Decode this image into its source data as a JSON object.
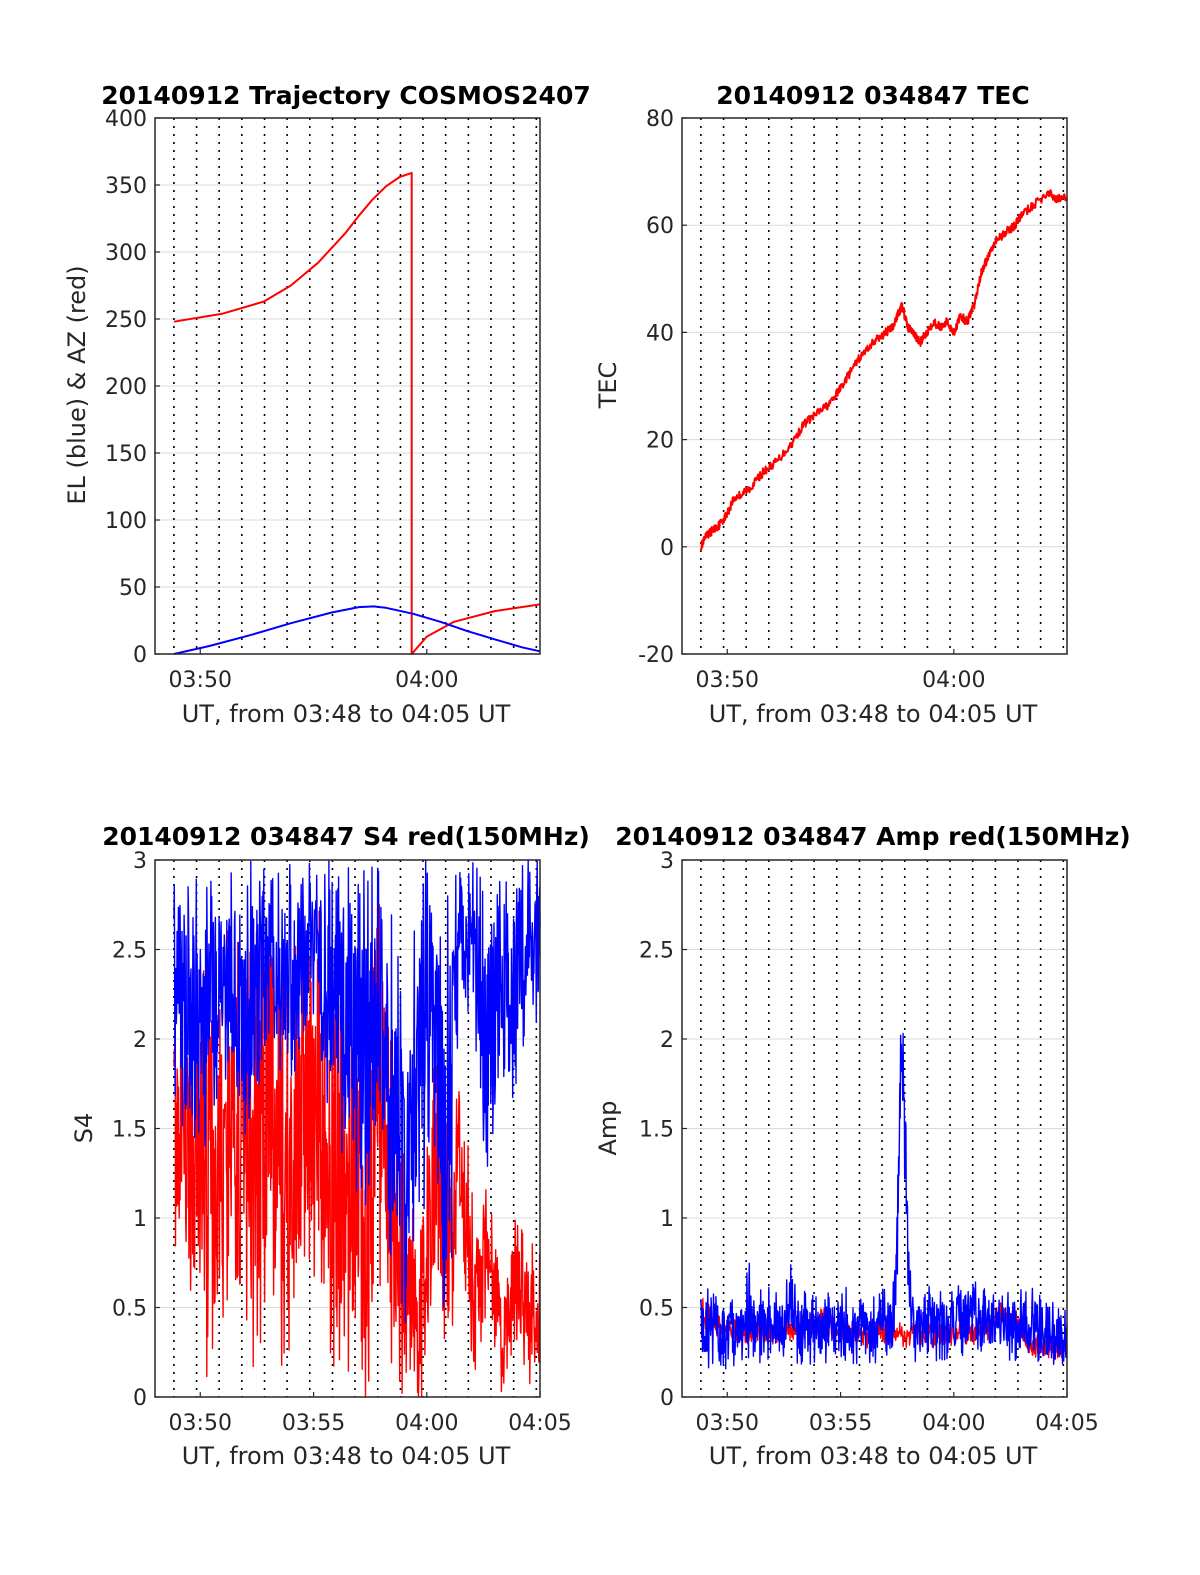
{
  "figure": {
    "background": "#ffffff",
    "colors": {
      "red": "#ff0000",
      "blue": "#0000ff",
      "grid": "#d9d9d9",
      "vline": "#000000",
      "axis": "#262626"
    }
  },
  "chart_data": [
    {
      "id": "trajectory",
      "type": "line",
      "title": "20140912 Trajectory COSMOS2407",
      "xlabel": "UT, from 03:48 to 04:05 UT",
      "ylabel": "EL (blue) & AZ (red)",
      "xlim": [
        3.8,
        4.0833
      ],
      "ylim": [
        0,
        400
      ],
      "yticks": [
        0,
        50,
        100,
        150,
        200,
        250,
        300,
        350,
        400
      ],
      "xticks": [
        {
          "value": 3.8333,
          "label": "03:50"
        },
        {
          "value": 4.0,
          "label": "04:00"
        }
      ],
      "vlines": [
        3.8139,
        3.8306,
        3.8472,
        3.8639,
        3.8806,
        3.8972,
        3.9139,
        3.9306,
        3.9472,
        3.9639,
        3.9806,
        3.9972,
        4.0139,
        4.0306,
        4.0472,
        4.0639,
        4.0806
      ],
      "grid": true,
      "series": [
        {
          "key": "az",
          "color": "#ff0000",
          "x": [
            3.8139,
            3.85,
            3.88,
            3.9,
            3.92,
            3.94,
            3.95,
            3.96,
            3.97,
            3.98,
            3.9889,
            3.9889,
            4.0,
            4.02,
            4.05,
            4.0833
          ],
          "y": [
            248,
            254,
            263,
            275,
            292,
            314,
            327,
            339,
            349,
            356,
            359,
            0,
            13,
            24,
            32,
            37
          ]
        },
        {
          "key": "el",
          "color": "#0000ff",
          "x": [
            3.8139,
            3.84,
            3.87,
            3.9,
            3.93,
            3.95,
            3.9611,
            3.97,
            3.99,
            4.01,
            4.03,
            4.05,
            4.07,
            4.0833
          ],
          "y": [
            0,
            6,
            14,
            23,
            31,
            35,
            35.5,
            34.5,
            30,
            24,
            17,
            11,
            5,
            2
          ]
        }
      ]
    },
    {
      "id": "tec",
      "type": "line",
      "title": "20140912 034847 TEC",
      "xlabel": "UT, from 03:48 to 04:05 UT",
      "ylabel": "TEC",
      "xlim": [
        3.8,
        4.0833
      ],
      "ylim": [
        -20,
        80
      ],
      "yticks": [
        -20,
        0,
        20,
        40,
        60,
        80
      ],
      "xticks": [
        {
          "value": 3.8333,
          "label": "03:50"
        },
        {
          "value": 4.0,
          "label": "04:00"
        }
      ],
      "vlines": [
        3.8139,
        3.8306,
        3.8472,
        3.8639,
        3.8806,
        3.8972,
        3.9139,
        3.9306,
        3.9472,
        3.9639,
        3.9806,
        3.9972,
        4.0139,
        4.0306,
        4.0472,
        4.0639,
        4.0806
      ],
      "grid": true,
      "series": [
        {
          "key": "tec",
          "color": "#ff0000",
          "x": [
            3.8139,
            3.818,
            3.822,
            3.827,
            3.833,
            3.838,
            3.845,
            3.85,
            3.86,
            3.87,
            3.88,
            3.89,
            3.9,
            3.91,
            3.92,
            3.93,
            3.94,
            3.95,
            3.955,
            3.96,
            3.962,
            3.966,
            3.97,
            3.975,
            3.98,
            3.985,
            3.99,
            3.995,
            4.0,
            4.005,
            4.01,
            4.015,
            4.02,
            4.025,
            4.03,
            4.035,
            4.04,
            4.045,
            4.05,
            4.06,
            4.07,
            4.075,
            4.0833
          ],
          "y": [
            0,
            2,
            3,
            4,
            6,
            9,
            10,
            11,
            14,
            16,
            19,
            23,
            25,
            27,
            31,
            35,
            38,
            40,
            41,
            44,
            45,
            41,
            40,
            38,
            40,
            42,
            41,
            42,
            40,
            43,
            42,
            45,
            51,
            54,
            57,
            58,
            59,
            60,
            62,
            64,
            66,
            65,
            65
          ]
        }
      ]
    },
    {
      "id": "s4",
      "type": "line",
      "title": "20140912 034847 S4 red(150MHz)",
      "xlabel": "UT, from 03:48 to 04:05 UT",
      "ylabel": "S4",
      "xlim": [
        3.8,
        4.0833
      ],
      "ylim": [
        0,
        3
      ],
      "yticks": [
        0,
        0.5,
        1,
        1.5,
        2,
        2.5,
        3
      ],
      "xticks": [
        {
          "value": 3.8333,
          "label": "03:50"
        },
        {
          "value": 3.9167,
          "label": "03:55"
        },
        {
          "value": 4.0,
          "label": "04:00"
        },
        {
          "value": 4.0833,
          "label": "04:05"
        }
      ],
      "vlines": [
        3.8139,
        3.8306,
        3.8472,
        3.8639,
        3.8806,
        3.8972,
        3.9139,
        3.9306,
        3.9472,
        3.9639,
        3.9806,
        3.9972,
        4.0139,
        4.0306,
        4.0472,
        4.0639,
        4.0806
      ],
      "grid": true,
      "series": [
        {
          "key": "red",
          "color": "#ff0000",
          "x": [
            3.8139,
            3.825,
            3.835,
            3.845,
            3.855,
            3.865,
            3.875,
            3.885,
            3.895,
            3.905,
            3.915,
            3.925,
            3.935,
            3.945,
            3.955,
            3.965,
            3.975,
            3.985,
            3.995,
            4.005,
            4.015,
            4.025,
            4.035,
            4.045,
            4.055,
            4.065,
            4.075,
            4.0833
          ],
          "y": [
            1.2,
            1.4,
            1.3,
            1.1,
            1.5,
            1.2,
            1.4,
            1.6,
            1.3,
            1.5,
            1.7,
            1.4,
            1.2,
            1.1,
            0.9,
            1.6,
            1.0,
            0.6,
            0.4,
            1.2,
            0.8,
            1.4,
            0.5,
            0.9,
            0.3,
            0.7,
            0.4,
            0.6
          ],
          "spread": [
            1.1,
            0.9,
            1.3,
            0.9,
            1.3,
            1.2,
            1.5,
            1.0,
            1.3,
            1.2,
            1.2,
            1.3,
            1.2,
            1.1,
            1.2,
            1.3,
            1.0,
            0.6,
            0.6,
            0.8,
            0.8,
            0.5,
            0.5,
            0.4,
            0.3,
            0.4,
            0.4,
            0.4
          ]
        },
        {
          "key": "blue",
          "color": "#0000ff",
          "x": [
            3.8139,
            3.825,
            3.835,
            3.845,
            3.855,
            3.865,
            3.875,
            3.885,
            3.895,
            3.905,
            3.915,
            3.925,
            3.935,
            3.945,
            3.955,
            3.965,
            3.975,
            3.985,
            3.995,
            4.005,
            4.015,
            4.025,
            4.035,
            4.045,
            4.055,
            4.065,
            4.075,
            4.0833
          ],
          "y": [
            2.2,
            2.3,
            2.1,
            2.3,
            2.4,
            2.2,
            2.3,
            2.5,
            2.3,
            2.4,
            2.6,
            2.3,
            2.2,
            2.1,
            2.0,
            2.3,
            1.6,
            1.2,
            1.9,
            2.2,
            1.4,
            2.6,
            2.5,
            1.8,
            2.4,
            2.3,
            2.6,
            2.5
          ],
          "spread": [
            0.8,
            0.7,
            0.9,
            0.7,
            0.6,
            0.8,
            0.7,
            0.5,
            0.7,
            0.6,
            0.4,
            0.7,
            0.8,
            0.9,
            1.0,
            0.7,
            1.1,
            0.9,
            1.1,
            0.8,
            1.4,
            0.4,
            0.5,
            1.2,
            0.6,
            0.7,
            0.4,
            0.5
          ]
        }
      ]
    },
    {
      "id": "amp",
      "type": "line",
      "title": "20140912 034847 Amp red(150MHz)",
      "xlabel": "UT, from 03:48 to 04:05 UT",
      "ylabel": "Amp",
      "xlim": [
        3.8,
        4.0833
      ],
      "ylim": [
        0,
        3
      ],
      "yticks": [
        0,
        0.5,
        1,
        1.5,
        2,
        2.5,
        3
      ],
      "xticks": [
        {
          "value": 3.8333,
          "label": "03:50"
        },
        {
          "value": 3.9167,
          "label": "03:55"
        },
        {
          "value": 4.0,
          "label": "04:00"
        },
        {
          "value": 4.0833,
          "label": "04:05"
        }
      ],
      "vlines": [
        3.8139,
        3.8306,
        3.8472,
        3.8639,
        3.8806,
        3.8972,
        3.9139,
        3.9306,
        3.9472,
        3.9639,
        3.9806,
        3.9972,
        4.0139,
        4.0306,
        4.0472,
        4.0639,
        4.0806
      ],
      "grid": true,
      "series": [
        {
          "key": "red",
          "color": "#ff0000",
          "x": [
            3.8139,
            3.825,
            3.835,
            3.845,
            3.855,
            3.865,
            3.875,
            3.885,
            3.895,
            3.905,
            3.915,
            3.925,
            3.935,
            3.945,
            3.955,
            3.965,
            3.975,
            3.985,
            3.995,
            4.005,
            4.015,
            4.025,
            4.035,
            4.045,
            4.055,
            4.065,
            4.075,
            4.0833
          ],
          "y": [
            0.48,
            0.4,
            0.38,
            0.36,
            0.35,
            0.37,
            0.36,
            0.39,
            0.4,
            0.42,
            0.38,
            0.36,
            0.34,
            0.37,
            0.36,
            0.35,
            0.36,
            0.34,
            0.35,
            0.37,
            0.36,
            0.39,
            0.46,
            0.44,
            0.3,
            0.28,
            0.27,
            0.26
          ],
          "spread": [
            0.1,
            0.08,
            0.07,
            0.08,
            0.07,
            0.08,
            0.07,
            0.08,
            0.07,
            0.08,
            0.07,
            0.08,
            0.07,
            0.07,
            0.07,
            0.08,
            0.07,
            0.07,
            0.07,
            0.07,
            0.07,
            0.07,
            0.07,
            0.07,
            0.07,
            0.07,
            0.07,
            0.07
          ]
        },
        {
          "key": "blue",
          "color": "#0000ff",
          "x": [
            3.8139,
            3.825,
            3.835,
            3.845,
            3.85,
            3.855,
            3.865,
            3.875,
            3.88,
            3.885,
            3.895,
            3.905,
            3.915,
            3.925,
            3.935,
            3.945,
            3.95,
            3.955,
            3.958,
            3.9611,
            3.964,
            3.967,
            3.97,
            3.975,
            3.985,
            3.995,
            4.005,
            4.015,
            4.025,
            4.035,
            4.045,
            4.055,
            4.065,
            4.075,
            4.0833
          ],
          "y": [
            0.4,
            0.37,
            0.35,
            0.38,
            0.5,
            0.38,
            0.42,
            0.4,
            0.55,
            0.4,
            0.38,
            0.4,
            0.42,
            0.4,
            0.39,
            0.4,
            0.42,
            0.45,
            0.8,
            1.9,
            1.6,
            0.6,
            0.4,
            0.42,
            0.41,
            0.4,
            0.42,
            0.45,
            0.41,
            0.4,
            0.38,
            0.42,
            0.35,
            0.33,
            0.3
          ],
          "spread": [
            0.25,
            0.2,
            0.22,
            0.2,
            0.3,
            0.22,
            0.2,
            0.2,
            0.25,
            0.22,
            0.2,
            0.22,
            0.2,
            0.22,
            0.2,
            0.22,
            0.2,
            0.2,
            0.3,
            0.3,
            0.4,
            0.2,
            0.22,
            0.2,
            0.22,
            0.2,
            0.22,
            0.2,
            0.22,
            0.2,
            0.2,
            0.25,
            0.2,
            0.2,
            0.2
          ]
        }
      ]
    }
  ]
}
